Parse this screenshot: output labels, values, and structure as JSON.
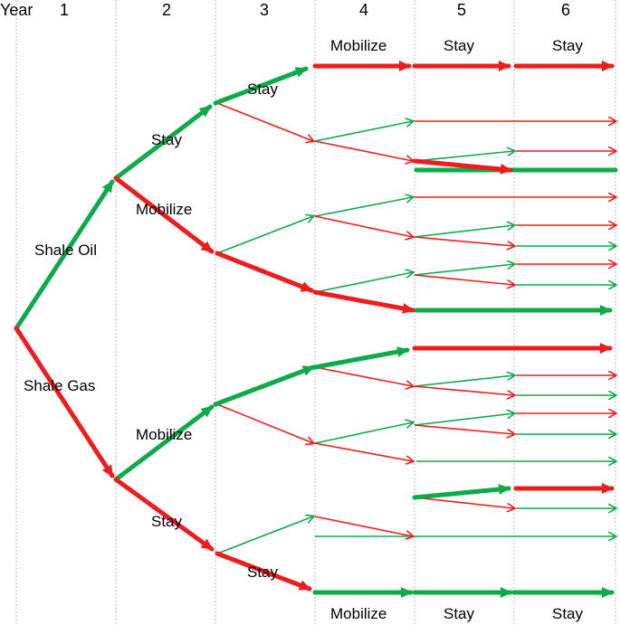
{
  "colors": {
    "shale_oil": "#0daa4a",
    "shale_gas": "#ee1c1c",
    "grid": "#b8b8b8"
  },
  "header": {
    "year_label": "Year",
    "years": [
      "1",
      "2",
      "3",
      "4",
      "5",
      "6"
    ]
  },
  "labels": {
    "shale_oil": "Shale Oil",
    "shale_gas": "Shale Gas",
    "stay": "Stay",
    "mobilize": "Mobilize"
  }
}
